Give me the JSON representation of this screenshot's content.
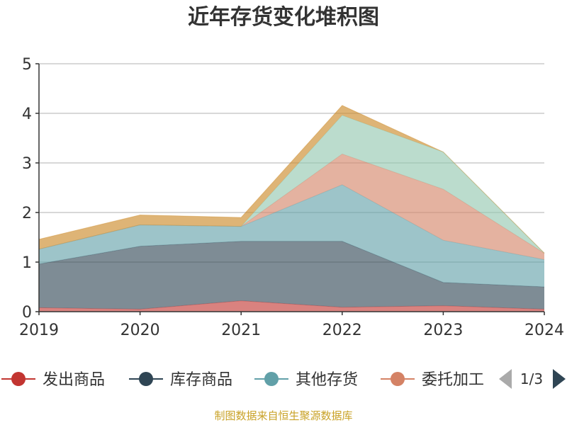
{
  "colors": {
    "title": "#333333",
    "axis": "#333333",
    "grid": "#cccccc",
    "source": "#c9a227",
    "ylabel": "#e02020",
    "pager_arrow_prev": "#aaaaaa",
    "pager_arrow_next": "#2f4554"
  },
  "source": "制图数据来自恒生聚源数据库",
  "legend": {
    "page": "1/3",
    "prev_icon": "triangle-left-icon",
    "next_icon": "triangle-right-icon"
  },
  "chart_data": {
    "type": "area",
    "stacked": true,
    "title": "近年存货变化堆积图",
    "ylabel": "",
    "x": [
      "2019",
      "2020",
      "2021",
      "2022",
      "2023",
      "2024"
    ],
    "ylim": [
      0,
      5
    ],
    "yticks": [
      "0",
      "1",
      "2",
      "3",
      "4",
      "5"
    ],
    "grid": true,
    "legend_position": "bottom",
    "series": [
      {
        "name": "发出商品",
        "color": "#c23531",
        "values": [
          0.08,
          0.05,
          0.22,
          0.09,
          0.12,
          0.05
        ]
      },
      {
        "name": "库存商品",
        "color": "#2f4554",
        "values": [
          0.88,
          1.27,
          1.2,
          1.33,
          0.47,
          0.45
        ]
      },
      {
        "name": "其他存货",
        "color": "#61a0a8",
        "values": [
          0.3,
          0.43,
          0.3,
          1.14,
          0.85,
          0.55
        ]
      },
      {
        "name": "委托加工",
        "color": "#d48265",
        "values": [
          0.0,
          0.0,
          0.0,
          0.62,
          1.03,
          0.13
        ]
      },
      {
        "name": "",
        "color": "#91c7ae",
        "values": [
          0.0,
          0.0,
          0.0,
          0.78,
          0.75,
          0.0
        ]
      },
      {
        "name": "",
        "color": "#749f83",
        "values": [
          0.0,
          0.0,
          0.0,
          0.0,
          0.0,
          0.0
        ]
      },
      {
        "name": "",
        "color": "#ca8622",
        "values": [
          0.2,
          0.2,
          0.18,
          0.2,
          0.0,
          0.0
        ]
      }
    ]
  }
}
